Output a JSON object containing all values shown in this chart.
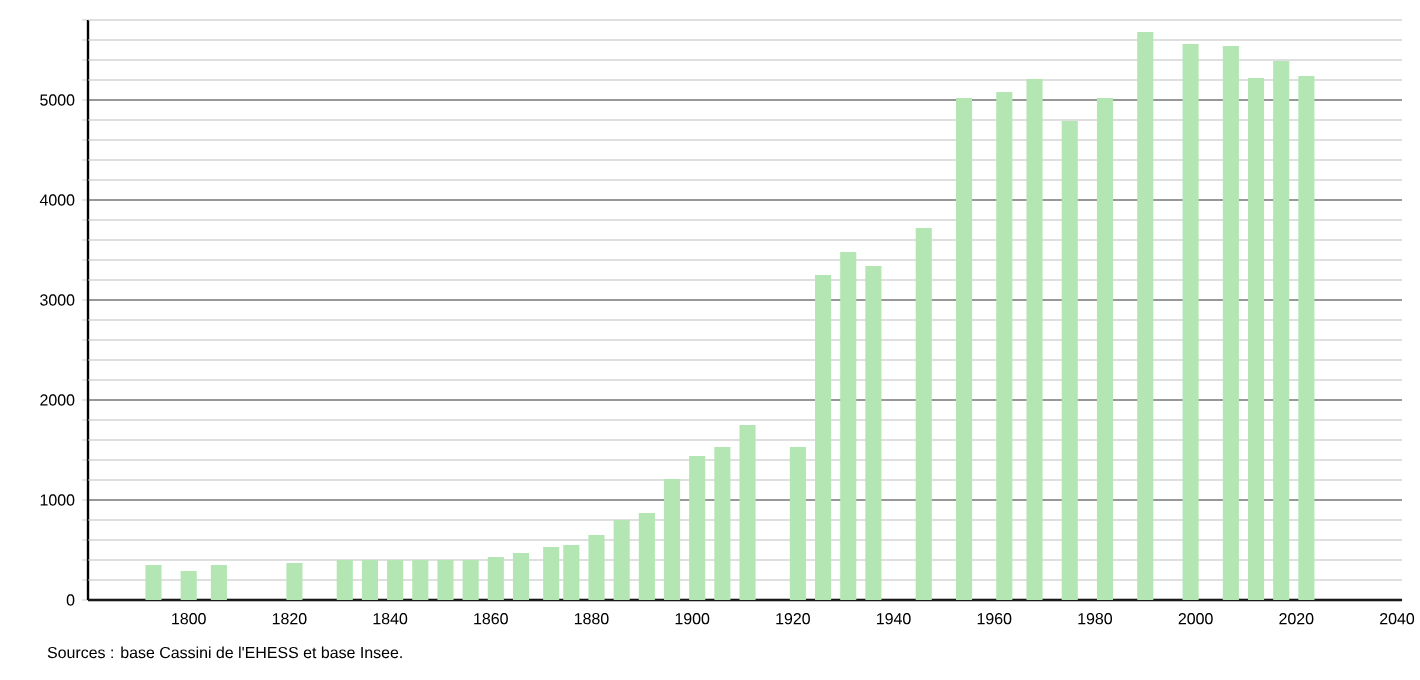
{
  "chart_data": {
    "type": "bar",
    "color": "#b3e6b3",
    "x": [
      1793,
      1800,
      1806,
      1821,
      1831,
      1836,
      1841,
      1846,
      1851,
      1856,
      1861,
      1866,
      1872,
      1876,
      1881,
      1886,
      1891,
      1896,
      1901,
      1906,
      1911,
      1921,
      1926,
      1931,
      1936,
      1946,
      1954,
      1962,
      1968,
      1975,
      1982,
      1990,
      1999,
      2007,
      2012,
      2017,
      2022
    ],
    "values": [
      350,
      290,
      350,
      370,
      400,
      400,
      400,
      400,
      400,
      400,
      430,
      470,
      530,
      550,
      650,
      800,
      870,
      1210,
      1440,
      1530,
      1750,
      1530,
      3250,
      3480,
      3340,
      3720,
      5020,
      5080,
      5210,
      4790,
      5020,
      5680,
      5560,
      5540,
      5220,
      5390,
      5240
    ],
    "xlim": [
      1780,
      2041
    ],
    "ylim": [
      0,
      5800
    ],
    "xticks": [
      1800,
      1820,
      1840,
      1860,
      1880,
      1900,
      1920,
      1940,
      1960,
      1980,
      2000,
      2020,
      2040
    ],
    "yticks": [
      0,
      {
        "value": 200,
        "label": null
      },
      {
        "value": 400,
        "label": null
      },
      {
        "value": 600,
        "label": null
      },
      {
        "value": 800,
        "label": null
      },
      1000,
      {
        "value": 1200,
        "label": null
      },
      {
        "value": 1400,
        "label": null
      },
      {
        "value": 1600,
        "label": null
      },
      {
        "value": 1800,
        "label": null
      },
      2000,
      {
        "value": 2200,
        "label": null
      },
      {
        "value": 2400,
        "label": null
      },
      {
        "value": 2600,
        "label": null
      },
      {
        "value": 2800,
        "label": null
      },
      3000,
      {
        "value": 3200,
        "label": null
      },
      {
        "value": 3400,
        "label": null
      },
      {
        "value": 3600,
        "label": null
      },
      {
        "value": 3800,
        "label": null
      },
      4000,
      {
        "value": 4200,
        "label": null
      },
      {
        "value": 4400,
        "label": null
      },
      {
        "value": 4600,
        "label": null
      },
      {
        "value": 4800,
        "label": null
      },
      5000,
      {
        "value": 5200,
        "label": null
      },
      {
        "value": 5400,
        "label": null
      },
      {
        "value": 5600,
        "label": null
      },
      {
        "value": 5800,
        "label": null
      }
    ],
    "grid": "y",
    "annotations": [
      "Sources : base Cassini de l'EHESS et base Insee."
    ]
  }
}
